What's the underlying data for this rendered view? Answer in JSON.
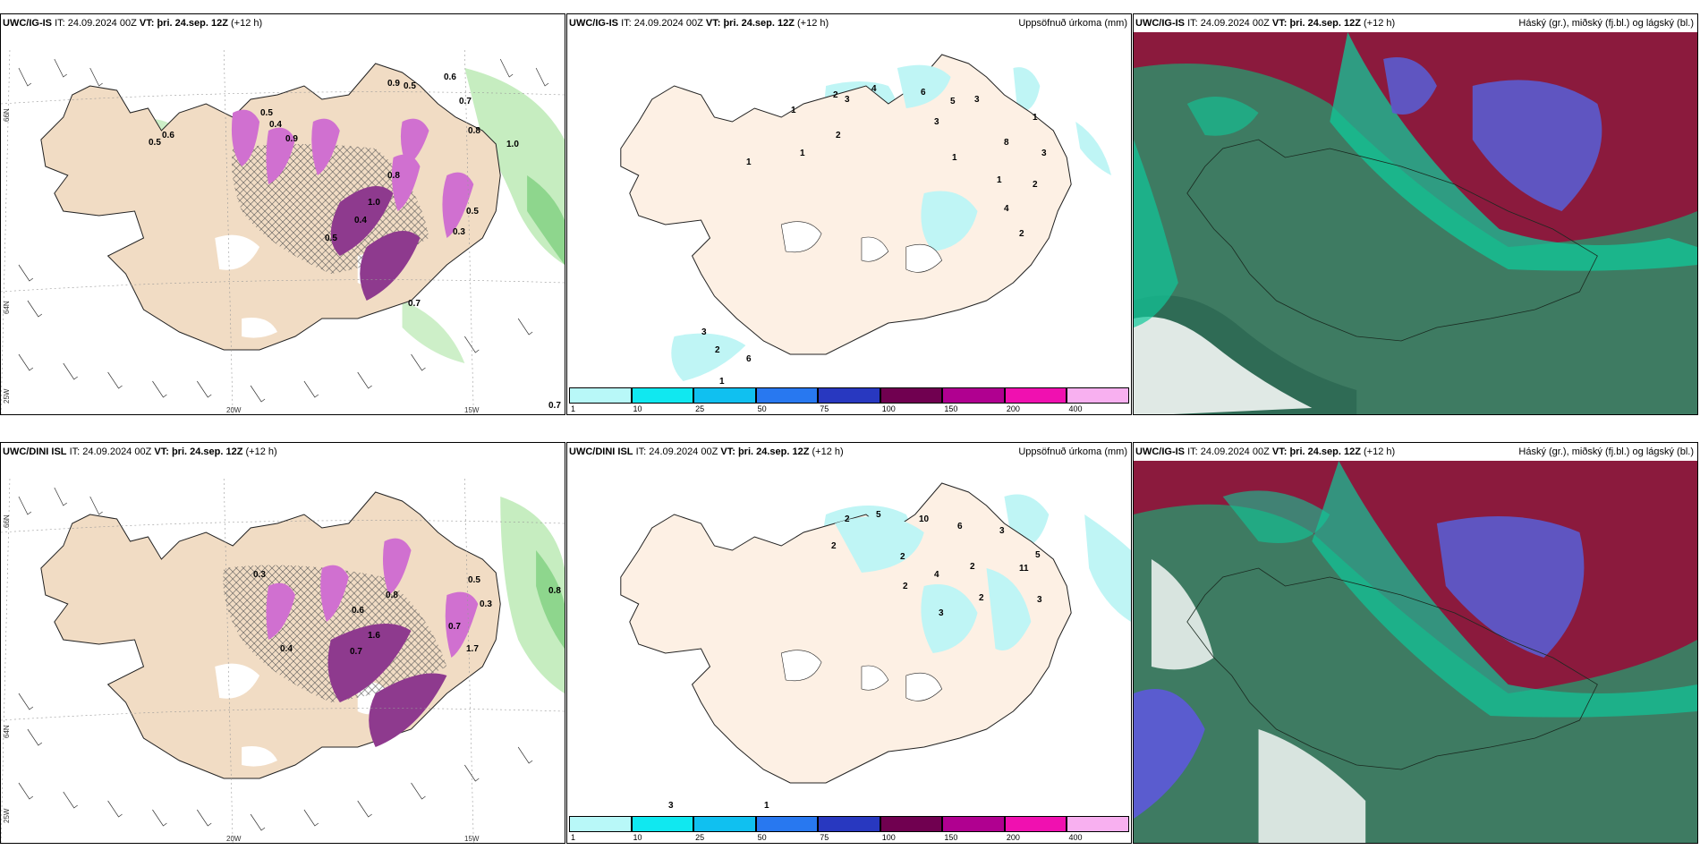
{
  "panels": [
    {
      "model": "UWC/IG-IS",
      "it_label": "IT:",
      "it": "24.09.2024 00Z",
      "vt_label": "VT:",
      "vt": "þri. 24.sep. 12Z",
      "lead": "(+12 h)",
      "title_right": ""
    },
    {
      "model": "UWC/IG-IS",
      "it_label": "IT:",
      "it": "24.09.2024 00Z",
      "vt_label": "VT:",
      "vt": "þri. 24.sep. 12Z",
      "lead": "(+12 h)",
      "title_right": "Uppsöfnuð úrkoma (mm)"
    },
    {
      "model": "UWC/IG-IS",
      "it_label": "IT:",
      "it": "24.09.2024 00Z",
      "vt_label": "VT:",
      "vt": "þri. 24.sep. 12Z",
      "lead": "(+12 h)",
      "title_right": "Háský (gr.), miðský (fj.bl.) og lágský (bl.)"
    },
    {
      "model": "UWC/DINI ISL",
      "it_label": "IT:",
      "it": "24.09.2024 00Z",
      "vt_label": "VT:",
      "vt": "þri. 24.sep. 12Z",
      "lead": "(+12 h)",
      "title_right": ""
    },
    {
      "model": "UWC/DINI ISL",
      "it_label": "IT:",
      "it": "24.09.2024 00Z",
      "vt_label": "VT:",
      "vt": "þri. 24.sep. 12Z",
      "lead": "(+12 h)",
      "title_right": "Uppsöfnuð úrkoma (mm)"
    },
    {
      "model": "UWC/IG-IS",
      "it_label": "IT:",
      "it": "24.09.2024 00Z",
      "vt_label": "VT:",
      "vt": "þri. 24.sep. 12Z",
      "lead": "(+12 h)",
      "title_right": "Háský (gr.), miðský (fj.bl.) og lágský (bl.)"
    }
  ],
  "axis_labels": {
    "lat66": "66N",
    "lat64": "64N",
    "lon25": "25W",
    "lon20": "20W",
    "lon15": "15W"
  },
  "colorbar": {
    "ticks": [
      "1",
      "10",
      "25",
      "50",
      "75",
      "100",
      "150",
      "200",
      "400"
    ],
    "colors": [
      "#b8f8f8",
      "#10e8f0",
      "#10c0f0",
      "#2878f0",
      "#2838c0",
      "#700050",
      "#b00090",
      "#f010b0",
      "#f8b0f0"
    ]
  },
  "panel1_values": [
    "0.5",
    "0.6",
    "0.9",
    "0.5",
    "0.6",
    "0.7",
    "0.8",
    "1.0",
    "0.5",
    "0.4",
    "0.9",
    "0.8",
    "1.0",
    "0.4",
    "0.5",
    "0.7",
    "0.7",
    "0.5",
    "0.3"
  ],
  "panel2_values": [
    "2",
    "3",
    "4",
    "6",
    "5",
    "3",
    "1",
    "1",
    "2",
    "1",
    "3",
    "1",
    "1",
    "2",
    "3",
    "4",
    "8",
    "2",
    "3",
    "6",
    "2",
    "1",
    "1"
  ],
  "panel4_values": [
    "0.8",
    "0.5",
    "0.3",
    "0.6",
    "0.8",
    "1.6",
    "0.4",
    "0.7",
    "1.7",
    "0.7",
    "0.3"
  ],
  "panel5_values": [
    "2",
    "5",
    "10",
    "6",
    "3",
    "2",
    "2",
    "4",
    "2",
    "11",
    "3",
    "5",
    "2",
    "3",
    "2",
    "3",
    "1"
  ],
  "colors": {
    "land": "#f7e4d2",
    "precip_light": "#bff5f5",
    "pink": "#cc55cc",
    "purple": "#6e2a6e",
    "green": "#9fe09a",
    "cloud_dark": "#3e7b62",
    "cloud_red": "#8b1a3d",
    "cloud_blue": "#5a5ccf",
    "cloud_teal": "#10c89a"
  }
}
